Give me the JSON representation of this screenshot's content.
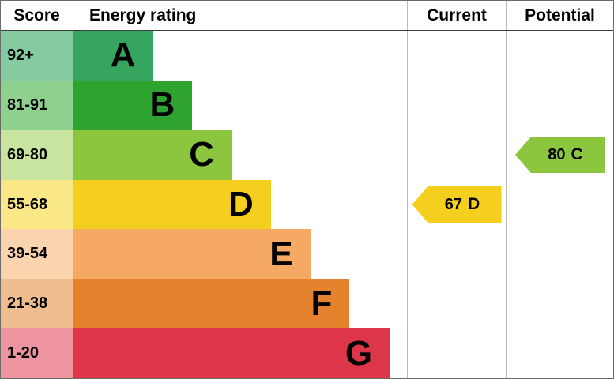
{
  "chart_data": {
    "type": "bar",
    "title": "Energy rating",
    "columns": [
      "Score",
      "Energy rating",
      "Current",
      "Potential"
    ],
    "categories": [
      "A",
      "B",
      "C",
      "D",
      "E",
      "F",
      "G"
    ],
    "score_ranges": [
      "92+",
      "81-91",
      "69-80",
      "55-68",
      "39-54",
      "21-38",
      "1-20"
    ],
    "current": {
      "value": 67,
      "band": "D"
    },
    "potential": {
      "value": 80,
      "band": "C"
    }
  },
  "header": {
    "score": "Score",
    "rating": "Energy rating",
    "current": "Current",
    "potential": "Potential"
  },
  "bands": [
    {
      "score": "92+",
      "letter": "A",
      "color": "#35a55f",
      "tint": "#84cba2",
      "width": "23.8%"
    },
    {
      "score": "81-91",
      "letter": "B",
      "color": "#2ea32e",
      "tint": "#8fd08f",
      "width": "35.6%"
    },
    {
      "score": "69-80",
      "letter": "C",
      "color": "#8cc63f",
      "tint": "#c8e49e",
      "width": "47.4%"
    },
    {
      "score": "55-68",
      "letter": "D",
      "color": "#f4cf1d",
      "tint": "#fae887",
      "width": "59.2%"
    },
    {
      "score": "39-54",
      "letter": "E",
      "color": "#f5a962",
      "tint": "#fad4ae",
      "width": "71.0%"
    },
    {
      "score": "21-38",
      "letter": "F",
      "color": "#e4822d",
      "tint": "#f0bd8e",
      "width": "82.8%"
    },
    {
      "score": "1-20",
      "letter": "G",
      "color": "#dd3649",
      "tint": "#ee93a0",
      "width": "94.8%"
    }
  ],
  "current_arrow": {
    "value": "67",
    "letter": "D",
    "color": "#f4cf1d"
  },
  "potential_arrow": {
    "value": "80",
    "letter": "C",
    "color": "#8cc63f"
  }
}
